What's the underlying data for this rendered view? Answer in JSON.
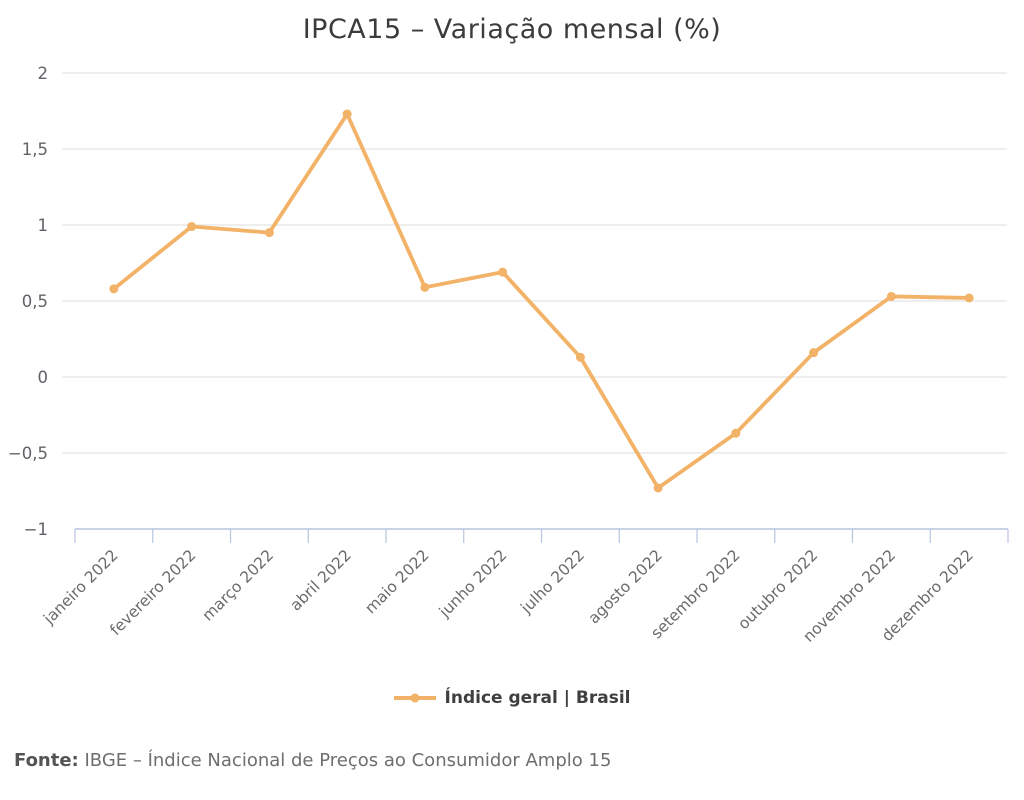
{
  "title": "IPCA15 – Variação mensal (%)",
  "legend": {
    "label": "Índice geral | Brasil"
  },
  "footer": {
    "prefix": "Fonte:",
    "text": " IBGE – Índice Nacional de Preços ao Consumidor Amplo 15"
  },
  "colors": {
    "line": "#f2b267",
    "axis": "#b7c3df",
    "grid": "#e8e8e8",
    "title": "#3c3c3c",
    "y_tick_label": "#5f6368",
    "x_tick_label": "#6a6a6a",
    "legend_text": "#3f3f3f",
    "footer_text": "#6e6e6e"
  },
  "chart_data": {
    "type": "line",
    "title": "IPCA15 – Variação mensal (%)",
    "xlabel": "",
    "ylabel": "",
    "categories": [
      "janeiro 2022",
      "fevereiro 2022",
      "março 2022",
      "abril 2022",
      "maio 2022",
      "junho 2022",
      "julho 2022",
      "agosto 2022",
      "setembro 2022",
      "outubro 2022",
      "novembro 2022",
      "dezembro 2022"
    ],
    "series": [
      {
        "name": "Índice geral | Brasil",
        "values": [
          0.58,
          0.99,
          0.95,
          1.73,
          0.59,
          0.69,
          0.13,
          -0.73,
          -0.37,
          0.16,
          0.53,
          0.52
        ]
      }
    ],
    "ylim": [
      -1,
      2
    ],
    "yticks": [
      -1,
      -0.5,
      0,
      0.5,
      1,
      1.5,
      2
    ],
    "ytick_labels": [
      "−1",
      "−0,5",
      "0",
      "0,5",
      "1",
      "1,5",
      "2"
    ],
    "grid": true,
    "legend_position": "bottom"
  }
}
